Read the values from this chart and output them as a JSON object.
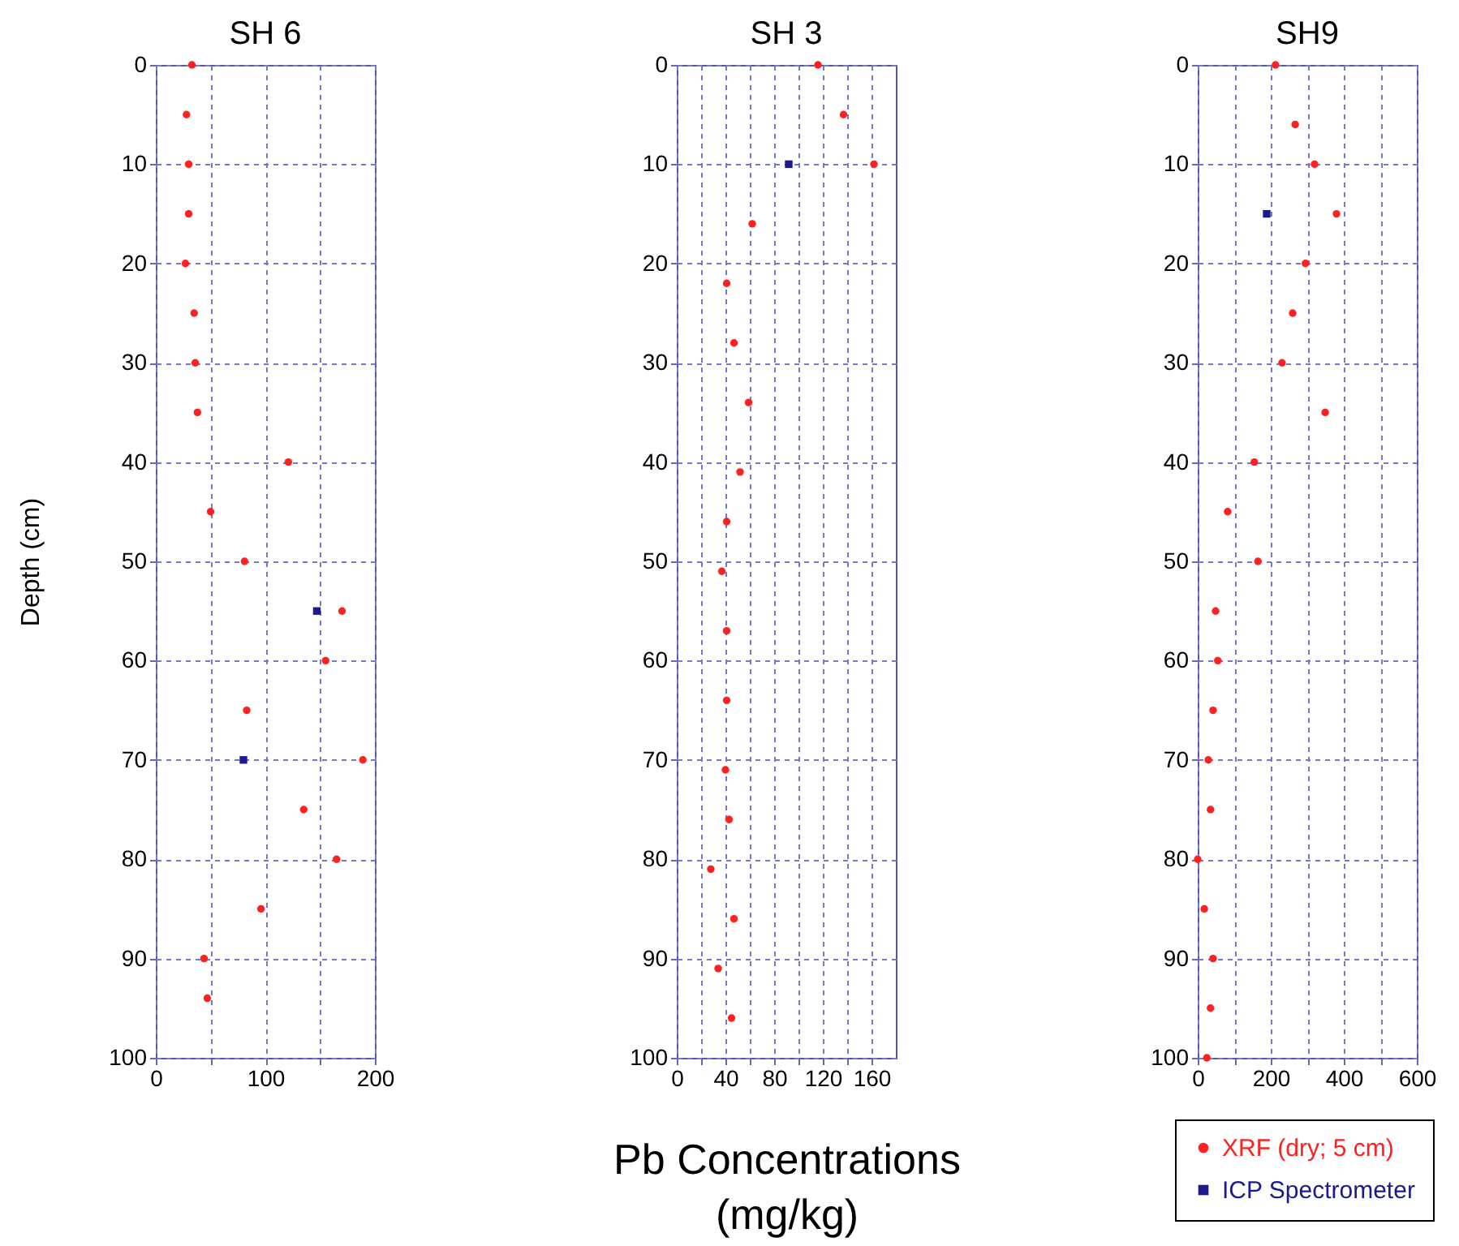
{
  "chart_data": [
    {
      "type": "scatter",
      "title": "SH 6",
      "ylabel": "Depth (cm)",
      "xlim": [
        0,
        200
      ],
      "xticks": [
        0,
        {
          "value": 50,
          "label": null
        },
        100,
        {
          "value": 150,
          "label": null
        },
        200
      ],
      "ylim": [
        100,
        0
      ],
      "yticks": [
        0,
        10,
        20,
        30,
        40,
        50,
        60,
        70,
        80,
        90,
        100
      ],
      "grid": true,
      "series": [
        {
          "color": "#ff2020",
          "marker": "circle",
          "x": [
            33,
            28,
            30,
            30,
            27,
            35,
            36,
            38,
            121,
            50,
            81,
            170,
            155,
            83,
            189,
            135,
            165,
            96,
            44,
            47
          ],
          "values": [
            0,
            5,
            10,
            15,
            20,
            25,
            30,
            35,
            40,
            45,
            50,
            55,
            60,
            65,
            70,
            75,
            80,
            85,
            90,
            94
          ]
        },
        {
          "color": "#1a1a8c",
          "marker": "square",
          "x": [
            147,
            80
          ],
          "values": [
            55,
            70
          ]
        }
      ]
    },
    {
      "type": "scatter",
      "title": "SH 3",
      "xlabel": "Pb Concentrations (mg/kg)",
      "xlim": [
        0,
        180
      ],
      "xticks": [
        0,
        {
          "value": 20,
          "label": null
        },
        40,
        {
          "value": 60,
          "label": null
        },
        80,
        {
          "value": 100,
          "label": null
        },
        120,
        {
          "value": 140,
          "label": null
        },
        160
      ],
      "ylim": [
        100,
        0
      ],
      "yticks": [
        0,
        10,
        20,
        30,
        40,
        50,
        60,
        70,
        80,
        90,
        100
      ],
      "grid": true,
      "series": [
        {
          "color": "#ff2020",
          "marker": "circle",
          "x": [
            116,
            137,
            162,
            62,
            41,
            47,
            59,
            52,
            41,
            37,
            41,
            41,
            40,
            43,
            28,
            47,
            34,
            45
          ],
          "values": [
            0,
            5,
            10,
            16,
            22,
            28,
            34,
            41,
            46,
            51,
            57,
            64,
            71,
            76,
            81,
            86,
            91,
            96
          ]
        },
        {
          "color": "#1a1a8c",
          "marker": "square",
          "x": [
            92
          ],
          "values": [
            10
          ]
        }
      ]
    },
    {
      "type": "scatter",
      "title": "SH9",
      "xlim": [
        0,
        600
      ],
      "xticks": [
        0,
        {
          "value": 100,
          "label": null
        },
        200,
        {
          "value": 300,
          "label": null
        },
        400,
        {
          "value": 500,
          "label": null
        },
        600
      ],
      "ylim": [
        100,
        0
      ],
      "yticks": [
        0,
        10,
        20,
        30,
        40,
        50,
        60,
        70,
        80,
        90,
        100
      ],
      "grid": true,
      "legend": "bottom",
      "series": [
        {
          "name": "XRF (dry; 5 cm)",
          "color": "#ff2020",
          "marker": "circle",
          "x": [
            213,
            267,
            320,
            380,
            295,
            260,
            231,
            349,
            155,
            82,
            165,
            49,
            55,
            42,
            29,
            35,
            0,
            18,
            42,
            35,
            25
          ],
          "values": [
            0,
            6,
            10,
            15,
            20,
            25,
            30,
            35,
            40,
            45,
            50,
            55,
            60,
            65,
            70,
            75,
            80,
            85,
            90,
            95,
            100
          ]
        },
        {
          "name": "ICP Spectrometer",
          "color": "#1a1a8c",
          "marker": "square",
          "x": [
            189
          ],
          "values": [
            15
          ]
        }
      ]
    }
  ]
}
